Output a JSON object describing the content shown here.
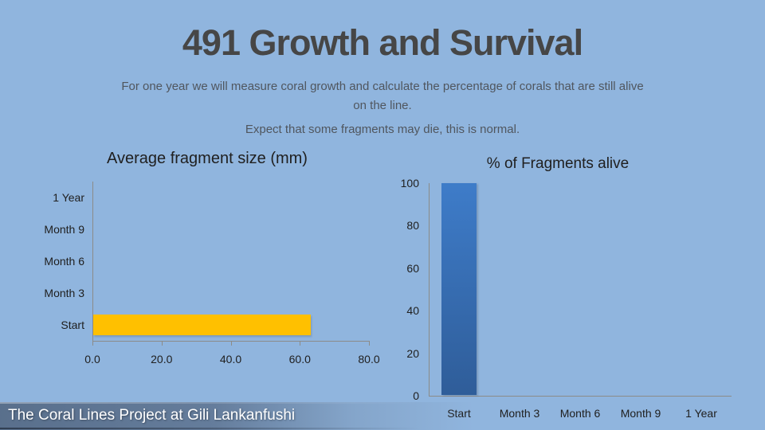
{
  "slide": {
    "title": "491 Growth and Survival",
    "subtitle_line1": "For one year we will measure coral growth and calculate the percentage of corals that are still alive on the line.",
    "subtitle_line2": "Expect that some fragments may die, this is normal.",
    "footer": "The Coral Lines Project at Gili Lankanfushi"
  },
  "colors": {
    "background": "#90B5DE",
    "title_text": "#464646",
    "subtitle_text": "#50565E",
    "chart_text": "#202020",
    "axis_line": "#8B8B88",
    "size_bar": "#FFC000",
    "alive_bar_top": "#3E7CC9",
    "alive_bar_bottom": "#2F5D99",
    "footer_text": "#FFFFFF"
  },
  "chart_data": [
    {
      "id": "average-fragment-size",
      "type": "bar",
      "orientation": "horizontal",
      "title": "Average fragment size (mm)",
      "categories": [
        "Start",
        "Month 3",
        "Month 6",
        "Month 9",
        "1 Year"
      ],
      "category_order_top_to_bottom": [
        "1 Year",
        "Month 9",
        "Month 6",
        "Month 3",
        "Start"
      ],
      "series": [
        {
          "name": "Average fragment size (mm)",
          "values": [
            63,
            null,
            null,
            null,
            null
          ]
        }
      ],
      "x_tick_labels": [
        "0.0",
        "20.0",
        "40.0",
        "60.0",
        "80.0"
      ],
      "xlim": [
        0,
        80
      ],
      "grid": false,
      "legend": "none",
      "bar_color": "#FFC000"
    },
    {
      "id": "fragments-alive",
      "type": "bar",
      "orientation": "vertical",
      "title": "% of Fragments alive",
      "categories": [
        "Start",
        "Month 3",
        "Month 6",
        "Month 9",
        "1 Year"
      ],
      "series": [
        {
          "name": "% of Fragments alive",
          "values": [
            100,
            null,
            null,
            null,
            null
          ]
        }
      ],
      "y_tick_labels": [
        "0",
        "20",
        "40",
        "60",
        "80",
        "100"
      ],
      "ylim": [
        0,
        100
      ],
      "grid": false,
      "legend": "none",
      "bar_color_top": "#3E7CC9",
      "bar_color_bottom": "#2F5D99"
    }
  ]
}
